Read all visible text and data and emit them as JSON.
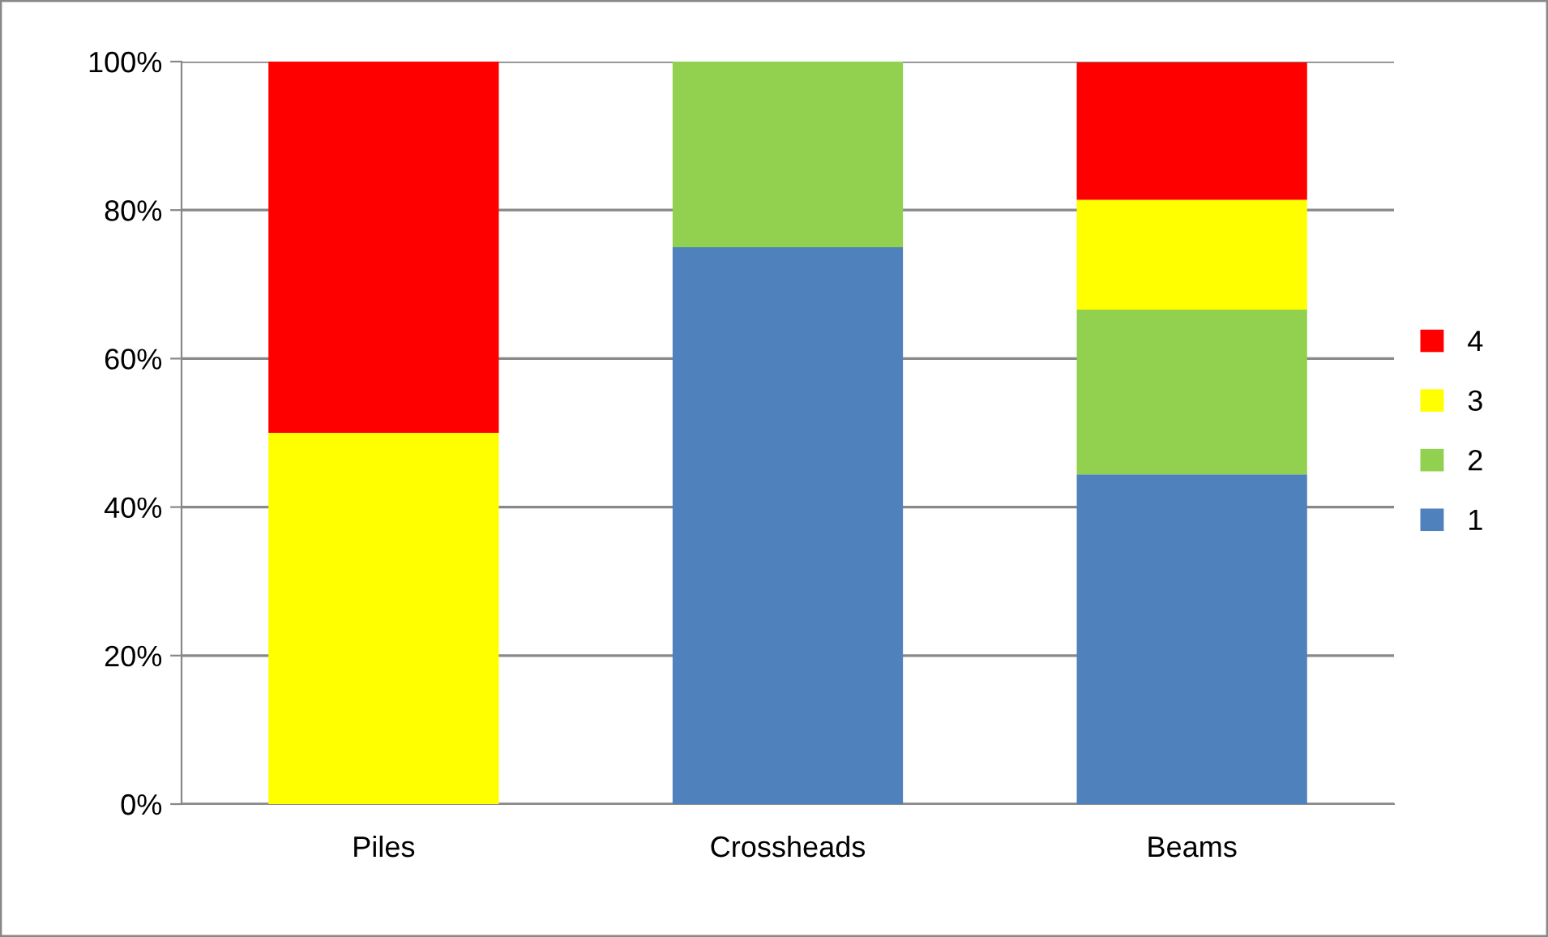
{
  "chart_data": {
    "type": "bar",
    "stacked": true,
    "categories": [
      "Piles",
      "Crossheads",
      "Beams"
    ],
    "series": [
      {
        "name": "1",
        "color": "#4f81bd",
        "values": [
          0,
          75,
          44.4
        ]
      },
      {
        "name": "2",
        "color": "#92d050",
        "values": [
          0,
          25,
          22.2
        ]
      },
      {
        "name": "3",
        "color": "#ffff00",
        "values": [
          50,
          0,
          14.8
        ]
      },
      {
        "name": "4",
        "color": "#ff0000",
        "values": [
          50,
          0,
          18.5
        ]
      }
    ],
    "ylim": [
      0,
      100
    ],
    "yticks": [
      {
        "value": 0,
        "label": "0%"
      },
      {
        "value": 20,
        "label": "20%"
      },
      {
        "value": 40,
        "label": "40%"
      },
      {
        "value": 60,
        "label": "60%"
      },
      {
        "value": 80,
        "label": "80%"
      },
      {
        "value": 100,
        "label": "100%"
      }
    ],
    "grid": "y",
    "legend": "right"
  }
}
